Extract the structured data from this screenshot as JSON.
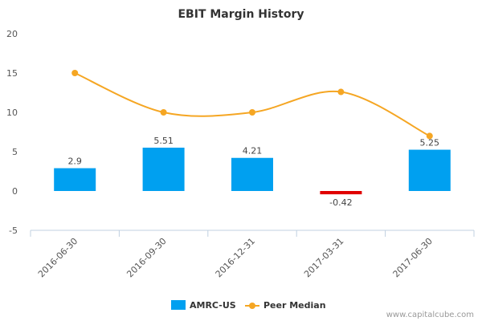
{
  "chart_data": {
    "type": "bar",
    "title": "EBIT Margin History",
    "categories": [
      "2016-06-30",
      "2016-09-30",
      "2016-12-31",
      "2017-03-31",
      "2017-06-30"
    ],
    "series": [
      {
        "name": "AMRC-US",
        "type": "bar",
        "values": [
          2.9,
          5.51,
          4.21,
          -0.42,
          5.25
        ],
        "labels": [
          "2.9",
          "5.51",
          "4.21",
          "-0.42",
          "5.25"
        ],
        "color": "#00a0f0",
        "negative_color": "#e00000"
      },
      {
        "name": "Peer Median",
        "type": "line",
        "values": [
          15,
          10,
          10,
          12.6,
          7
        ],
        "color": "#f5a623"
      }
    ],
    "ylim": [
      -5,
      20
    ],
    "yticks": [
      "-5",
      "0",
      "5",
      "10",
      "15",
      "20"
    ],
    "grid": false,
    "legend": "bottom-center"
  },
  "credit": "www.capitalcube.com"
}
